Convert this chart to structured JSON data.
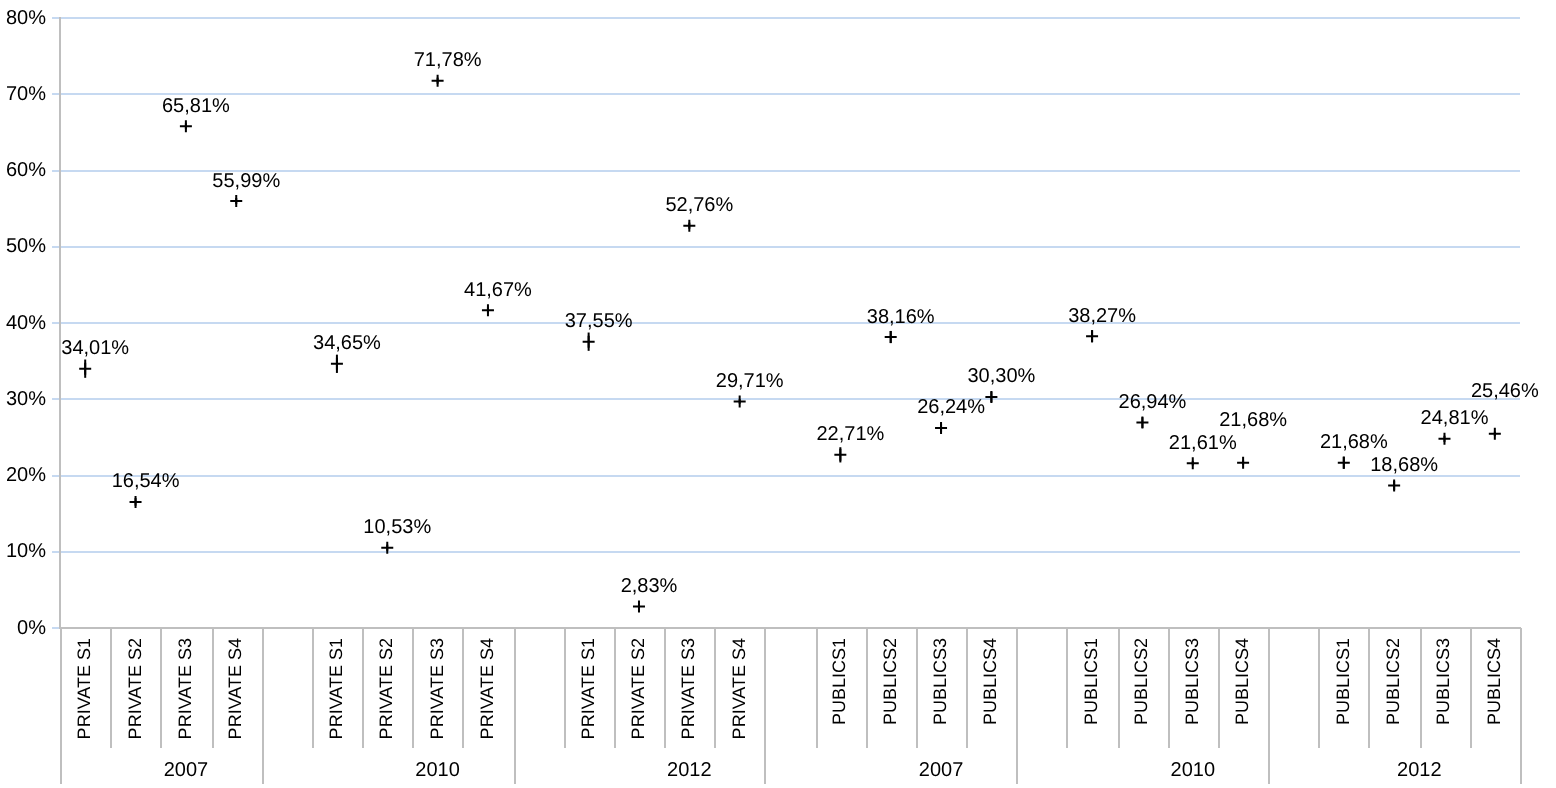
{
  "chart_data": {
    "type": "scatter",
    "categories": [
      "PRIVATE S1",
      "PRIVATE S2",
      "PRIVATE S3",
      "PRIVATE S4",
      null,
      "PRIVATE S1",
      "PRIVATE S2",
      "PRIVATE S3",
      "PRIVATE S4",
      null,
      "PRIVATE S1",
      "PRIVATE S2",
      "PRIVATE S3",
      "PRIVATE S4",
      null,
      "PUBLICS1",
      "PUBLICS2",
      "PUBLICS3",
      "PUBLICS4",
      null,
      "PUBLICS1",
      "PUBLICS2",
      "PUBLICS3",
      "PUBLICS4",
      null,
      "PUBLICS1",
      "PUBLICS2",
      "PUBLICS3",
      "PUBLICS4"
    ],
    "series": [
      {
        "color": "#000000",
        "values": [
          34.01,
          16.54,
          65.81,
          55.99,
          null,
          34.65,
          10.53,
          71.78,
          41.67,
          null,
          37.55,
          2.83,
          52.76,
          29.71,
          null,
          22.71,
          38.16,
          26.24,
          30.3,
          null,
          38.27,
          26.94,
          21.61,
          21.68,
          null,
          21.68,
          18.68,
          24.81,
          25.46
        ],
        "errors": [
          1.2,
          0.5,
          0.4,
          0.4,
          null,
          1.2,
          0.4,
          0.4,
          0.4,
          null,
          1.2,
          0.2,
          0.4,
          0.3,
          null,
          1.0,
          0.8,
          0.6,
          0.7,
          null,
          0.8,
          0.7,
          0.3,
          0.3,
          null,
          0.8,
          0.6,
          0.4,
          0.3
        ],
        "value_labels": [
          "34,01%",
          "16,54%",
          "65,81%",
          "55,99%",
          null,
          "34,65%",
          "10,53%",
          "71,78%",
          "41,67%",
          null,
          "37,55%",
          "2,83%",
          "52,76%",
          "29,71%",
          null,
          "22,71%",
          "38,16%",
          "26,24%",
          "30,30%",
          null,
          "38,27%",
          "26,94%",
          "21,61%",
          "21,68%",
          null,
          "21,68%",
          "18,68%",
          "24,81%",
          "25,46%"
        ]
      }
    ],
    "annotations": [
      "2007",
      "2010",
      "2012",
      "2007",
      "2010",
      "2012"
    ],
    "ylim": [
      0,
      80
    ],
    "yticks": [
      {
        "value": 0,
        "label": "0%"
      },
      {
        "value": 10,
        "label": "10%"
      },
      {
        "value": 20,
        "label": "20%"
      },
      {
        "value": 30,
        "label": "30%"
      },
      {
        "value": 40,
        "label": "40%"
      },
      {
        "value": 50,
        "label": "50%"
      },
      {
        "value": 60,
        "label": "60%"
      },
      {
        "value": 70,
        "label": "70%"
      },
      {
        "value": 80,
        "label": "80%"
      }
    ],
    "grid": "y",
    "legend": false,
    "marker": "cross"
  }
}
